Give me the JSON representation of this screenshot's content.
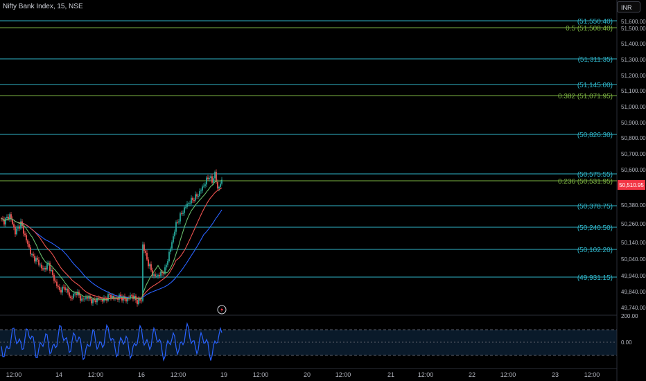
{
  "header": {
    "title": "Nifty Bank Index, 15, NSE",
    "currency_button": "INR"
  },
  "price_axis": {
    "ticks": [
      "51,500.00",
      "51,400.00",
      "51,300.00",
      "51,200.00",
      "51,100.00",
      "51,000.00",
      "50,900.00",
      "50,800.00",
      "50,700.00",
      "50,600.00",
      "50,380.00",
      "50,260.00",
      "50,140.00",
      "50,040.00",
      "49,940.00",
      "49,840.00",
      "49,740.00"
    ],
    "top_partial_tick": "51,600.00",
    "last_price": "50,510.95",
    "last_price_color": "#f23645"
  },
  "levels": [
    {
      "label": "(51,550.40)",
      "color": "#2fb5c9"
    },
    {
      "label": "0.5 (51,508.40)",
      "color": "#7cb342"
    },
    {
      "label": "(51,311.35)",
      "color": "#2fb5c9"
    },
    {
      "label": "(51,145.00)",
      "color": "#2fb5c9"
    },
    {
      "label": "0.382 (51,071.95)",
      "color": "#7cb342"
    },
    {
      "label": "(50,826.30)",
      "color": "#2fb5c9"
    },
    {
      "label": "(50,575.55)",
      "color": "#2fb5c9"
    },
    {
      "label": "0.236 (50,531.95)",
      "color": "#7cb342"
    },
    {
      "label": "(50,378.75)",
      "color": "#2fb5c9"
    },
    {
      "label": "(50,240.50)",
      "color": "#2fb5c9"
    },
    {
      "label": "(50,102.20)",
      "color": "#2fb5c9"
    },
    {
      "label": "(49,931.15)",
      "color": "#2fb5c9"
    }
  ],
  "oscillator": {
    "axis_ticks": [
      "200.00",
      "0.00"
    ],
    "line_color": "#2962ff"
  },
  "time_axis": {
    "labels": [
      "12:00",
      "14",
      "12:00",
      "16",
      "12:00",
      "19",
      "12:00",
      "20",
      "12:00",
      "21",
      "12:00",
      "22",
      "12:00",
      "23",
      "12:00"
    ]
  },
  "colors": {
    "up": "#26a69a",
    "down": "#ef5350",
    "ma_blue": "#2962ff",
    "ma_red": "#ef5350",
    "ma_green": "#66bb6a"
  },
  "icons": {
    "lightning": "lightning-icon"
  }
}
